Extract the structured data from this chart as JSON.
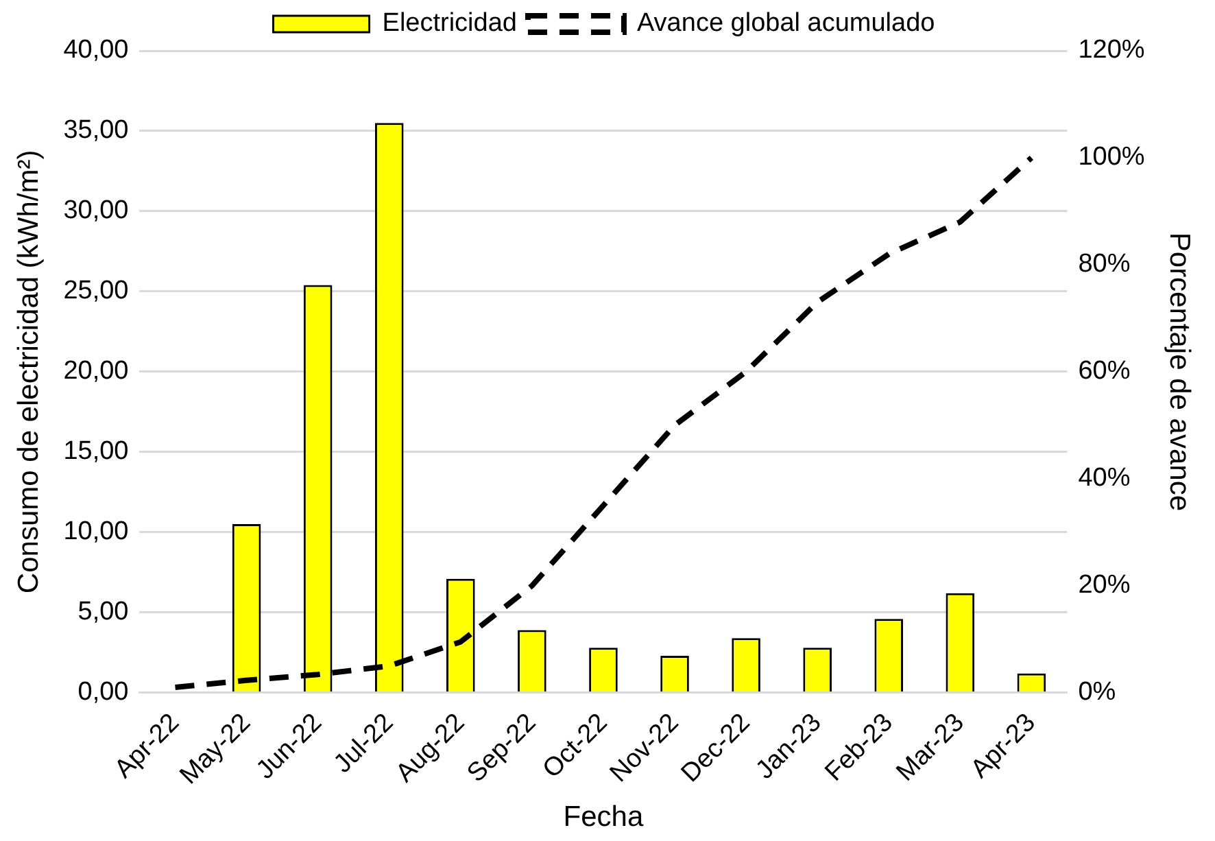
{
  "chart_data": {
    "type": "bar",
    "xlabel": "Fecha",
    "ylabel": "Consumo de electricidad (kWh/m²)",
    "y2label": "Porcentaje de avance",
    "categories": [
      "Apr-22",
      "May-22",
      "Jun-22",
      "Jul-22",
      "Aug-22",
      "Sep-22",
      "Oct-22",
      "Nov-22",
      "Dec-22",
      "Jan-23",
      "Feb-23",
      "Mar-23",
      "Apr-23"
    ],
    "series": [
      {
        "name": "Electricidad",
        "color": "#ffff00",
        "values": [
          0,
          10.5,
          25.4,
          35.5,
          7.1,
          3.9,
          2.8,
          2.3,
          3.4,
          2.8,
          4.6,
          6.2,
          1.2
        ]
      },
      {
        "name": "Avance global acumulado",
        "type": "line",
        "axis": "y2",
        "color": "#000000",
        "line_style": "dashed",
        "marker": "none",
        "values": [
          1,
          2.3,
          3.4,
          5,
          9.5,
          20,
          35,
          50,
          60,
          73,
          82,
          88,
          100
        ]
      }
    ],
    "ylim": [
      0,
      40
    ],
    "yticks": [
      {
        "value": 0,
        "label": "0,00"
      },
      {
        "value": 5,
        "label": "5,00"
      },
      {
        "value": 10,
        "label": "10,00"
      },
      {
        "value": 15,
        "label": "15,00"
      },
      {
        "value": 20,
        "label": "20,00"
      },
      {
        "value": 25,
        "label": "25,00"
      },
      {
        "value": 30,
        "label": "30,00"
      },
      {
        "value": 35,
        "label": "35,00"
      },
      {
        "value": 40,
        "label": "40,00"
      }
    ],
    "y2lim": [
      0,
      120
    ],
    "y2ticks": [
      {
        "value": 0,
        "label": "0%"
      },
      {
        "value": 20,
        "label": "20%"
      },
      {
        "value": 40,
        "label": "40%"
      },
      {
        "value": 60,
        "label": "60%"
      },
      {
        "value": 80,
        "label": "80%"
      },
      {
        "value": 100,
        "label": "100%"
      },
      {
        "value": 120,
        "label": "120%"
      }
    ],
    "grid": "y",
    "legend": "top"
  }
}
